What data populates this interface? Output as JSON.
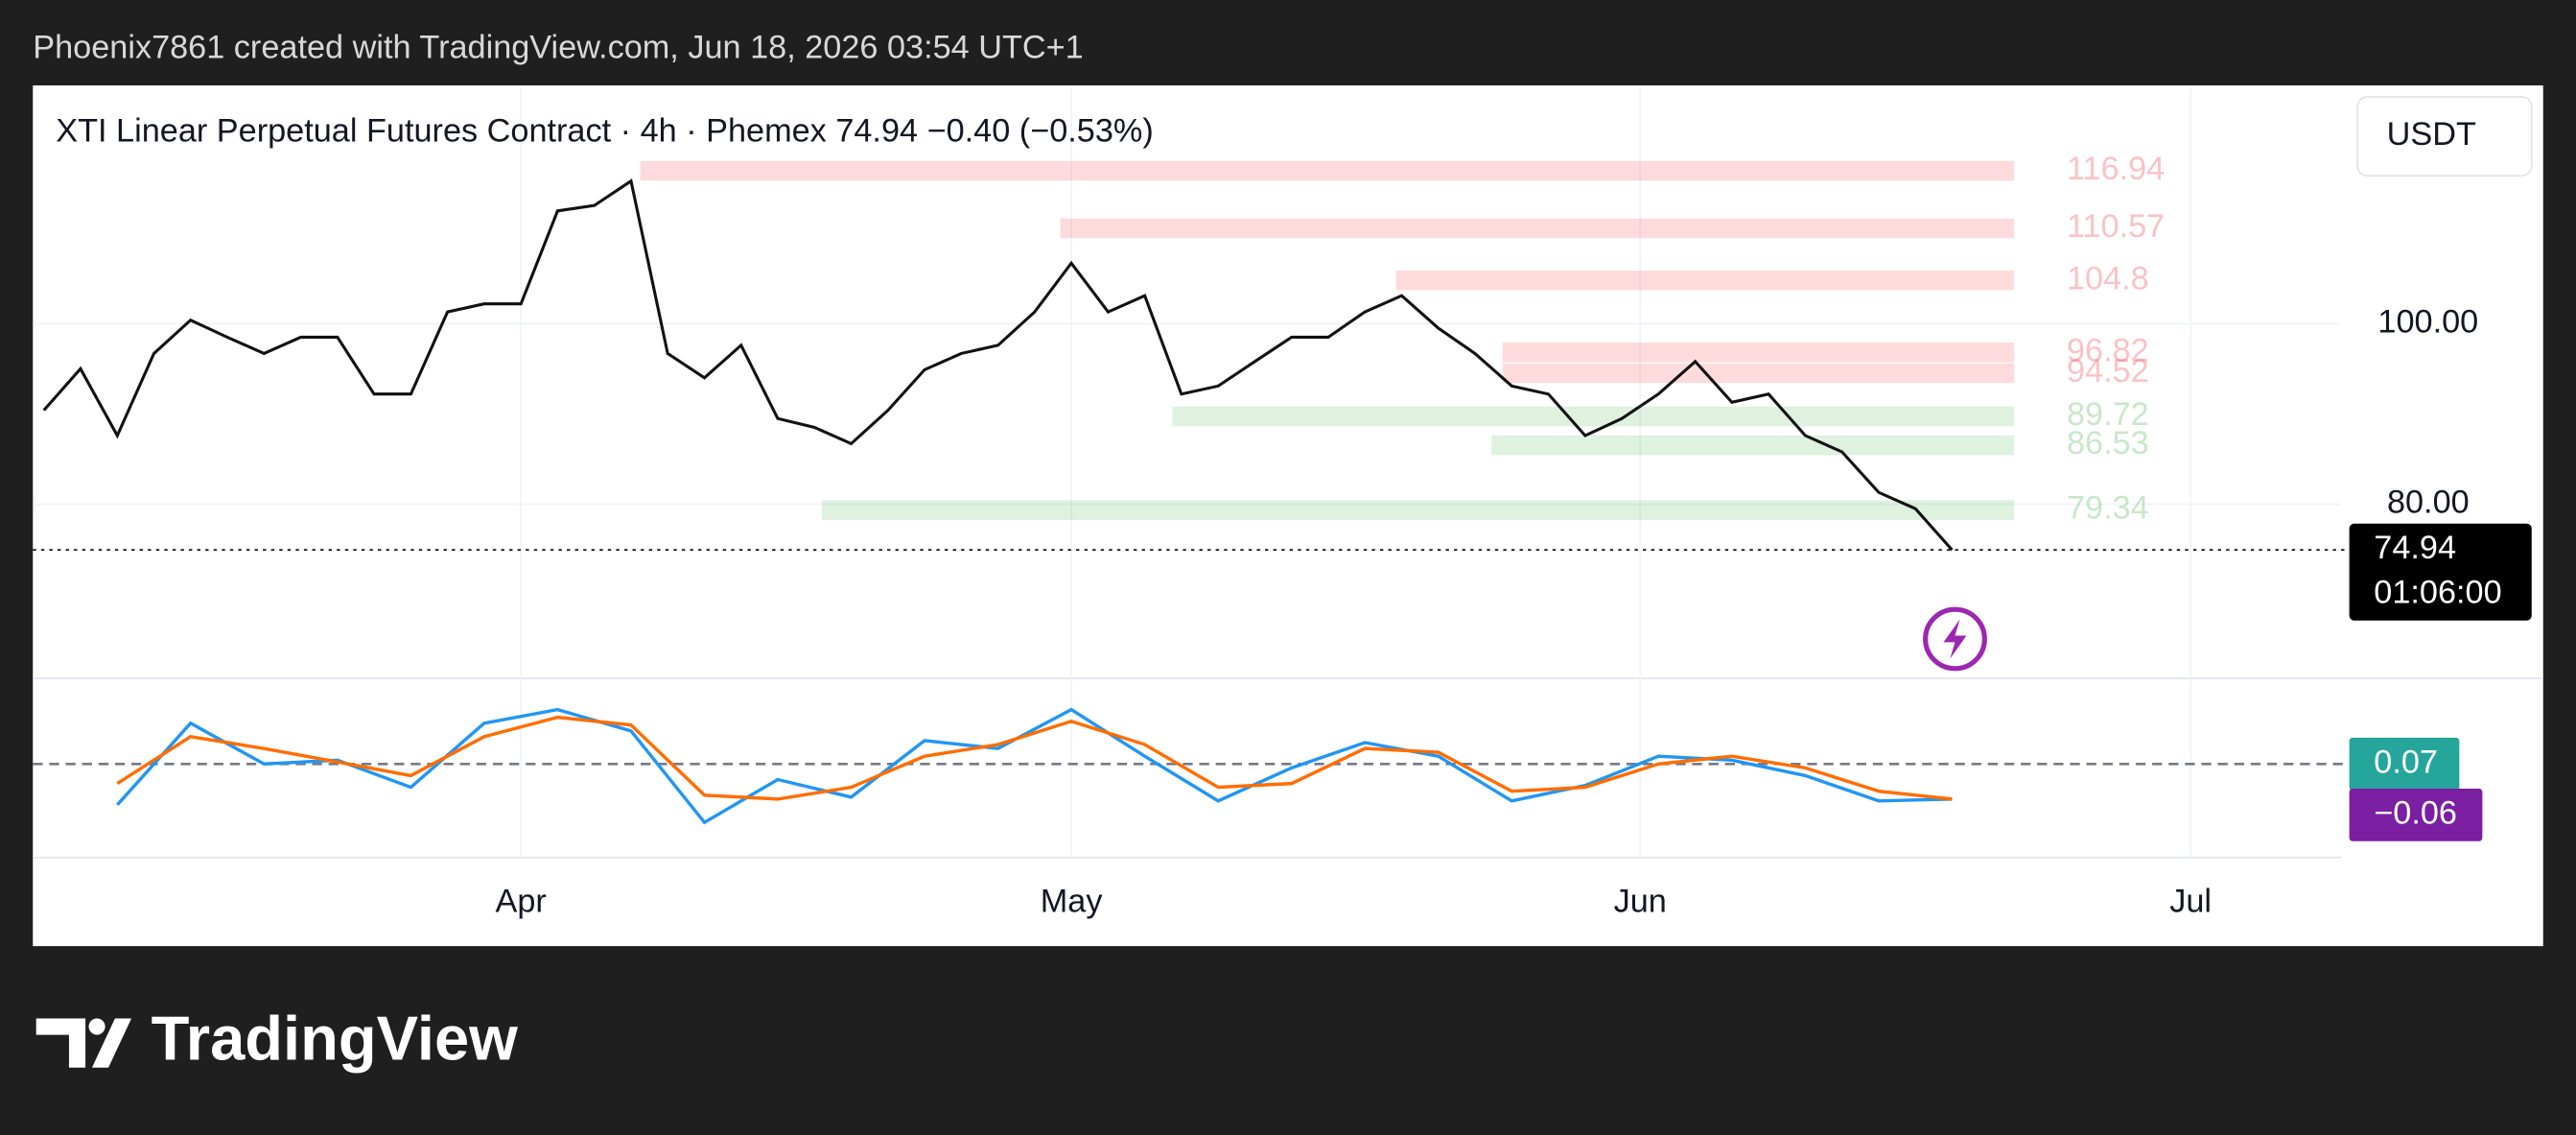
{
  "header": "Phoenix7861 created with TradingView.com, Jun 18, 2026 03:54 UTC+1",
  "brand": "TradingView",
  "chart_data": {
    "type": "line",
    "title": "XTI Linear Perpetual Futures Contract · 4h · Phemex  74.94  −0.40 (−0.53%)",
    "currency": "USDT",
    "xlim": [
      -26.6,
      99.2
    ],
    "xticks": [
      {
        "value": 0,
        "label": "Apr"
      },
      {
        "value": 30,
        "label": "May"
      },
      {
        "value": 61,
        "label": "Jun"
      },
      {
        "value": 91,
        "label": "Jul"
      }
    ],
    "ylim": [
      60.7,
      126.4
    ],
    "yticks": [
      {
        "value": 80,
        "label": "80.00"
      },
      {
        "value": 100,
        "label": "100.00"
      }
    ],
    "grid": true,
    "series": [
      {
        "color": "#111111",
        "x": [
          -26,
          -24,
          -22,
          -20,
          -18,
          -16,
          -14,
          -12,
          -10,
          -8,
          -6,
          -4,
          -2,
          0,
          2,
          4,
          6,
          8,
          10,
          12,
          14,
          16,
          18,
          20,
          22,
          24,
          26,
          28,
          30,
          32,
          34,
          36,
          38,
          40,
          42,
          44,
          46,
          48,
          50,
          52,
          54,
          56,
          58,
          60,
          62,
          64,
          66,
          68,
          70,
          72,
          74,
          76,
          78
        ],
        "values": [
          90.4,
          95,
          87.6,
          96.7,
          100.4,
          98.5,
          96.7,
          98.5,
          98.5,
          92.2,
          92.2,
          101.3,
          102.2,
          102.2,
          112.5,
          113.1,
          115.8,
          96.7,
          94,
          97.6,
          89.5,
          88.5,
          86.7,
          90.4,
          94.9,
          96.7,
          97.6,
          101.3,
          106.7,
          101.3,
          103.1,
          92.2,
          93.1,
          95.8,
          98.5,
          98.5,
          101.3,
          103.1,
          99.5,
          96.7,
          93.1,
          92.2,
          87.6,
          89.5,
          92.2,
          95.8,
          91.3,
          92.2,
          87.6,
          85.8,
          81.3,
          79.5,
          74.94
        ]
      }
    ],
    "last_price": {
      "value": 74.94,
      "label": "74.94",
      "countdown": "01:06:00"
    },
    "zones": [
      {
        "value": 116.94,
        "start": 6.5,
        "color": "#f23645"
      },
      {
        "value": 110.57,
        "start": 29.4,
        "color": "#f23645"
      },
      {
        "value": 104.8,
        "start": 47.7,
        "color": "#f23645"
      },
      {
        "value": 96.82,
        "start": 53.5,
        "color": "#f23645"
      },
      {
        "value": 94.52,
        "start": 53.5,
        "color": "#f23645"
      },
      {
        "value": 89.72,
        "start": 35.5,
        "color": "#4caf50"
      },
      {
        "value": 86.53,
        "start": 52.9,
        "color": "#4caf50"
      },
      {
        "value": 79.34,
        "start": 16.4,
        "color": "#4caf50"
      }
    ],
    "macd": {
      "ylim": [
        -2.4,
        2.2
      ],
      "zero": 0,
      "labels": [
        {
          "label": "0.07",
          "color": "#26a69a"
        },
        {
          "label": "−0.06",
          "color": "#7b1fa2"
        }
      ],
      "x": [
        -22,
        -18,
        -14,
        -10,
        -6,
        -2,
        2,
        6,
        10,
        14,
        18,
        22,
        26,
        30,
        34,
        38,
        42,
        46,
        50,
        54,
        58,
        62,
        66,
        70,
        74,
        78
      ],
      "series": [
        {
          "color": "#2196f3",
          "values": [
            -1.05,
            1.05,
            0,
            0.1,
            -0.6,
            1.05,
            1.4,
            0.85,
            -1.5,
            -0.4,
            -0.85,
            0.6,
            0.4,
            1.4,
            0.2,
            -0.95,
            -0.1,
            0.55,
            0.2,
            -0.95,
            -0.55,
            0.2,
            0.1,
            -0.3,
            -0.95,
            -0.9
          ]
        },
        {
          "color": "#ff6d00",
          "values": [
            -0.5,
            0.7,
            0.4,
            0.05,
            -0.3,
            0.7,
            1.2,
            1.0,
            -0.8,
            -0.9,
            -0.6,
            0.2,
            0.5,
            1.1,
            0.5,
            -0.6,
            -0.5,
            0.4,
            0.3,
            -0.7,
            -0.6,
            0,
            0.2,
            -0.1,
            -0.7,
            -0.9
          ]
        }
      ]
    }
  }
}
